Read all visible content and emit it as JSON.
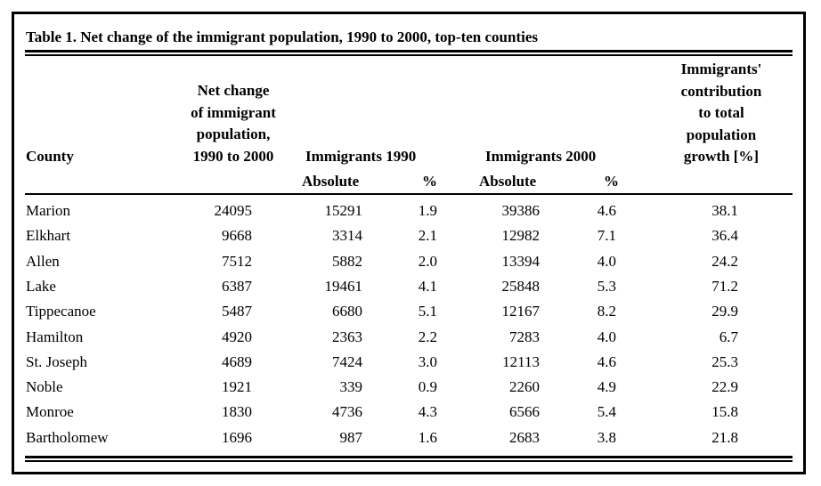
{
  "title": "Table 1. Net change of the immigrant population, 1990 to 2000, top-ten counties",
  "headers": {
    "county": "County",
    "net_change": [
      "Net change",
      "of immigrant",
      "population,",
      "1990 to 2000"
    ],
    "immigrants_1990": "Immigrants 1990",
    "immigrants_2000": "Immigrants 2000",
    "contribution": [
      "Immigrants'",
      "contribution",
      "to total",
      "population",
      "growth [%]"
    ],
    "absolute_1990": "Absolute",
    "pct_1990": "%",
    "absolute_2000": "Absolute",
    "pct_2000": "%"
  },
  "rows": [
    [
      "Marion",
      "24095",
      "15291",
      "1.9",
      "39386",
      "4.6",
      "38.1"
    ],
    [
      "Elkhart",
      "9668",
      "3314",
      "2.1",
      "12982",
      "7.1",
      "36.4"
    ],
    [
      "Allen",
      "7512",
      "5882",
      "2.0",
      "13394",
      "4.0",
      "24.2"
    ],
    [
      "Lake",
      "6387",
      "19461",
      "4.1",
      "25848",
      "5.3",
      "71.2"
    ],
    [
      "Tippecanoe",
      "5487",
      "6680",
      "5.1",
      "12167",
      "8.2",
      "29.9"
    ],
    [
      "Hamilton",
      "4920",
      "2363",
      "2.2",
      "7283",
      "4.0",
      "6.7"
    ],
    [
      "St. Joseph",
      "4689",
      "7424",
      "3.0",
      "12113",
      "4.6",
      "25.3"
    ],
    [
      "Noble",
      "1921",
      "339",
      "0.9",
      "2260",
      "4.9",
      "22.9"
    ],
    [
      "Monroe",
      "1830",
      "4736",
      "4.3",
      "6566",
      "5.4",
      "15.8"
    ],
    [
      "Bartholomew",
      "1696",
      "987",
      "1.6",
      "2683",
      "3.8",
      "21.8"
    ]
  ]
}
